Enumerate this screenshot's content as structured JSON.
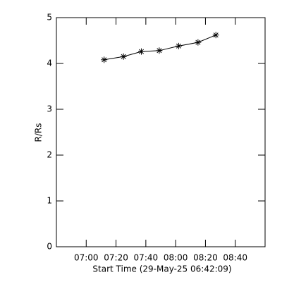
{
  "chart_data": {
    "type": "line",
    "x_label": "Start Time (29-May-25 06:42:09)",
    "y_label": "R/Rs",
    "x": [
      "07:12",
      "07:25",
      "07:37",
      "07:49",
      "08:02",
      "08:15",
      "08:27"
    ],
    "values": [
      4.08,
      4.15,
      4.26,
      4.28,
      4.38,
      4.46,
      4.62
    ],
    "color": "#000000",
    "marker": "asterisk",
    "xlim": [
      "06:40",
      "09:00"
    ],
    "xticks": [
      "07:00",
      "07:20",
      "07:40",
      "08:00",
      "08:20",
      "08:40"
    ],
    "ylim": [
      0,
      5
    ],
    "yticks": [
      0,
      1,
      2,
      3,
      4,
      5
    ]
  }
}
